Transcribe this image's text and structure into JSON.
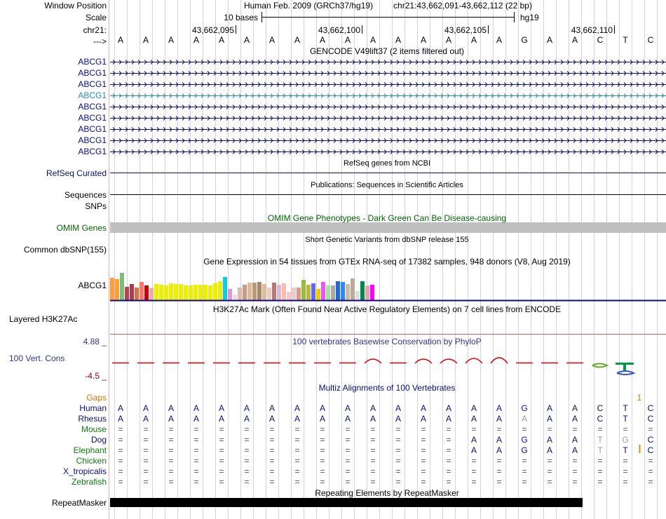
{
  "colors": {
    "gencode": "#0c0c78",
    "gencode_highlight": "#2a8cb0",
    "refseq": "#0c0c78",
    "omim_title": "#006400",
    "omim_bar": "#c0c0c0",
    "phylop_title": "#33338c",
    "phylop_pos": "#dd0000",
    "h3k27ac_line": "#c86060",
    "gaps": "#cc7a00",
    "species_label": "#0c0c78",
    "guide": "#d0d0e8",
    "conflict_grey": "#9a9a9a",
    "tick_orange": "#dd8800"
  },
  "header": {
    "window_position_label": "Window Position",
    "assembly_text": "Human Feb. 2009 (GRCh37/hg19)",
    "position_text": "chr21:43,662,091-43,662,112 (22 bp)",
    "scale_label": "Scale",
    "scale_text": "10 bases",
    "scale_db": "hg19",
    "chrom_label": "chr21:",
    "strand_label": "--->",
    "coords": [
      "43,662,095",
      "43,662,100",
      "43,662,105",
      "43,662,110"
    ]
  },
  "reference_bases": [
    "A",
    "A",
    "A",
    "A",
    "A",
    "A",
    "A",
    "A",
    "A",
    "A",
    "A",
    "A",
    "A",
    "A",
    "A",
    "A",
    "G",
    "A",
    "A",
    "C",
    "T",
    "C"
  ],
  "gencode": {
    "title": "GENCODE V49lift37 (2 items filtered out)",
    "rows": [
      "ABCG1",
      "ABCG1",
      "ABCG1",
      "ABCG1",
      "ABCG1",
      "ABCG1",
      "ABCG1",
      "ABCG1",
      "ABCG1"
    ],
    "highlighted_row": 3
  },
  "refseq": {
    "label": "RefSeq Curated",
    "title": "RefSeq genes from NCBI"
  },
  "publications": {
    "label": "Sequences",
    "title": "Publications: Sequences in Scientific Articles"
  },
  "snps": {
    "label": "SNPs"
  },
  "omim": {
    "label": "OMIM Genes",
    "title": "OMIM Gene Phenotypes - Dark Green Can Be Disease-causing"
  },
  "dbsnp": {
    "label": "Common dbSNP(155)",
    "title": "Short Genetic Variants from dbSNP release 155"
  },
  "gtex": {
    "label": "ABCG1",
    "title": "Gene Expression in 54 tissues from GTEx RNA-seq of 17382 samples, 948 donors (V8, Aug 2019)",
    "values": [
      0.62,
      0.58,
      0.75,
      0.36,
      0.45,
      0.35,
      0.5,
      0.4,
      0.32,
      0.45,
      0.42,
      0.4,
      0.46,
      0.45,
      0.44,
      0.4,
      0.41,
      0.42,
      0.42,
      0.42,
      0.4,
      0.46,
      0.52,
      0.63,
      0.3,
      0.15,
      0.35,
      0.42,
      0.48,
      0.48,
      0.5,
      0.45,
      0.34,
      0.49,
      0.42,
      0.46,
      0.24,
      0.35,
      0.34,
      0.55,
      0.42,
      0.46,
      0.3,
      0.5,
      0.4,
      0.4,
      0.52,
      0.5,
      0.45,
      0.6,
      0.25,
      0.52,
      0.4,
      0.42
    ],
    "colors": [
      "#ff9d3a",
      "#ff9d3a",
      "#7abf76",
      "#aa4a4a",
      "#bb3355",
      "#cc7744",
      "#ff7766",
      "#cc0000",
      "#eeaaaa",
      "#eeee00",
      "#eeee00",
      "#eeee00",
      "#eeee00",
      "#eeee00",
      "#eeee00",
      "#eeee00",
      "#eeee00",
      "#eeee00",
      "#eeee00",
      "#eeee00",
      "#eeee00",
      "#eeee00",
      "#eeee00",
      "#11ccdd",
      "#dd99dd",
      "#eedddd",
      "#ddbbaa",
      "#cc9988",
      "#ddbb99",
      "#bb9977",
      "#aa8866",
      "#ddbb99",
      "#eeccbb",
      "#bb7777",
      "#ddbbcc",
      "#ffbbaa",
      "#eecccc",
      "#eecccc",
      "#dd9988",
      "#99bb44",
      "#bbbb33",
      "#6666ee",
      "#eecc00",
      "#ee55ee",
      "#aaddaa",
      "#aaaa99",
      "#2266dd",
      "#3388ee",
      "#ccbbaa",
      "#bbaa99",
      "#dddddd",
      "#00884a",
      "#ddaaaa",
      "#ff00ff"
    ]
  },
  "h3k27ac": {
    "label": "Layered H3K27Ac",
    "title": "H3K27Ac Mark (Often Found Near Active Regulatory Elements) on 7 cell lines from ENCODE"
  },
  "phylop": {
    "label": "100 Vert. Cons",
    "max_label": "4.88 _",
    "min_label": "-4.5 _",
    "title": "100 vertebrates Basewise Conservation by PhyloP",
    "scores": [
      0.1,
      0.1,
      0.1,
      0.1,
      0.1,
      0.1,
      0.1,
      0.1,
      0.1,
      0.1,
      0.45,
      0.1,
      0.45,
      0.5,
      0.55,
      0.65,
      0.1,
      0.1,
      0.05,
      0.0,
      0.0,
      0.0
    ]
  },
  "multiz": {
    "title": "Multiz Alignments of 100 Vertebrates",
    "gaps_label": "Gaps",
    "gaps_marker": "1",
    "species": [
      {
        "name": "Human",
        "row": [
          "A",
          "A",
          "A",
          "A",
          "A",
          "A",
          "A",
          "A",
          "A",
          "A",
          "A",
          "A",
          "A",
          "A",
          "A",
          "A",
          "G",
          "A",
          "A",
          "C",
          "T",
          "C"
        ],
        "grey": []
      },
      {
        "name": "Rhesus",
        "row": [
          "A",
          "A",
          "A",
          "A",
          "A",
          "A",
          "A",
          "A",
          "A",
          "A",
          "A",
          "A",
          "A",
          "A",
          "A",
          "A",
          "A",
          "A",
          "A",
          "C",
          "T",
          "C"
        ],
        "grey": [
          16
        ]
      },
      {
        "name": "Mouse",
        "row": [
          "=",
          "=",
          "=",
          "=",
          "=",
          "=",
          "=",
          "=",
          "=",
          "=",
          "=",
          "=",
          "=",
          "=",
          "=",
          "=",
          "=",
          "=",
          "=",
          "=",
          "=",
          "="
        ],
        "grey": []
      },
      {
        "name": "Dog",
        "row": [
          "=",
          "=",
          "=",
          "=",
          "=",
          "=",
          "=",
          "=",
          "=",
          "=",
          "=",
          "=",
          "=",
          "=",
          "A",
          "A",
          "G",
          "A",
          "A",
          "T",
          "G",
          "C"
        ],
        "grey": [
          19,
          20
        ]
      },
      {
        "name": "Elephant",
        "row": [
          "=",
          "=",
          "=",
          "=",
          "=",
          "=",
          "=",
          "=",
          "=",
          "=",
          "=",
          "=",
          "=",
          "=",
          "A",
          "A",
          "G",
          "A",
          "A",
          "T",
          "T",
          "C"
        ],
        "grey": [
          19
        ]
      },
      {
        "name": "Chicken",
        "row": [
          "=",
          "=",
          "=",
          "=",
          "=",
          "=",
          "=",
          "=",
          "=",
          "=",
          "=",
          "=",
          "=",
          "=",
          "=",
          "=",
          "=",
          "=",
          "=",
          "=",
          "=",
          "="
        ],
        "grey": []
      },
      {
        "name": "X_tropicalis",
        "row": [
          "=",
          "=",
          "=",
          "=",
          "=",
          "=",
          "=",
          "=",
          "=",
          "=",
          "=",
          "=",
          "=",
          "=",
          "=",
          "=",
          "=",
          "=",
          "=",
          "=",
          "=",
          "="
        ],
        "grey": []
      },
      {
        "name": "Zebrafish",
        "row": [
          "=",
          "=",
          "=",
          "=",
          "=",
          "=",
          "=",
          "=",
          "=",
          "=",
          "=",
          "=",
          "=",
          "=",
          "=",
          "=",
          "=",
          "=",
          "=",
          "=",
          "=",
          "="
        ],
        "grey": []
      }
    ]
  },
  "repeatmasker": {
    "label": "RepeatMasker",
    "title": "Repeating Elements by RepeatMasker",
    "covered_bases": 19
  }
}
